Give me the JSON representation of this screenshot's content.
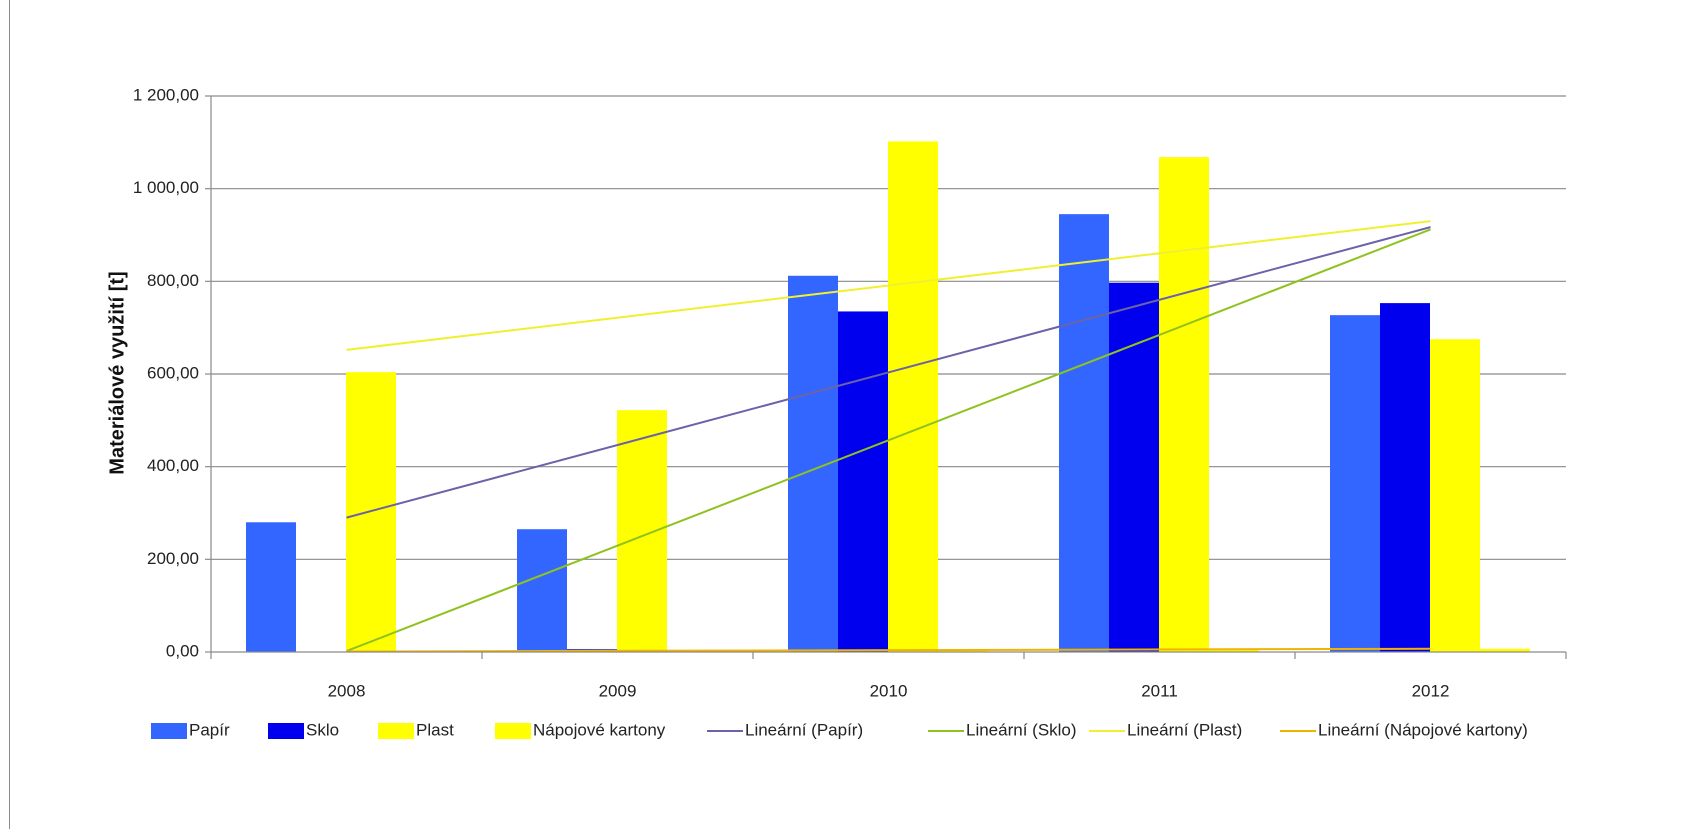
{
  "chart_data": {
    "type": "bar",
    "title": "",
    "xlabel": "",
    "ylabel": "Materiálové využití [t]",
    "ylim": [
      0,
      1200
    ],
    "y_ticks": [
      0,
      200,
      400,
      600,
      800,
      1000,
      1200
    ],
    "y_tick_labels": [
      "0,00",
      "200,00",
      "400,00",
      "600,00",
      "800,00",
      "1 000,00",
      "1 200,00"
    ],
    "grid": true,
    "legend_position": "bottom",
    "categories": [
      "2008",
      "2009",
      "2010",
      "2011",
      "2012"
    ],
    "series": [
      {
        "name": "Papír",
        "color": "#3366ff",
        "values": [
          280,
          265,
          812,
          945,
          727
        ]
      },
      {
        "name": "Sklo",
        "color": "#0000ee",
        "values": [
          0,
          6,
          735,
          797,
          753
        ]
      },
      {
        "name": "Plast",
        "color": "#ffff00",
        "values": [
          604,
          522,
          1102,
          1068,
          675
        ]
      },
      {
        "name": "Nápojové kartony",
        "color": "#ffff00",
        "values": [
          1,
          2,
          5,
          6,
          7
        ]
      }
    ],
    "trendlines": [
      {
        "name": "Lineární (Papír)",
        "color": "#6b63a8",
        "start": 290,
        "end": 917
      },
      {
        "name": "Lineární (Sklo)",
        "color": "#8fc21f",
        "start": 2,
        "end": 912
      },
      {
        "name": "Lineární (Plast)",
        "color": "#f0f030",
        "start": 652,
        "end": 930
      },
      {
        "name": "Lineární (Nápojové kartony)",
        "color": "#f0b400",
        "start": 1,
        "end": 7
      }
    ]
  }
}
